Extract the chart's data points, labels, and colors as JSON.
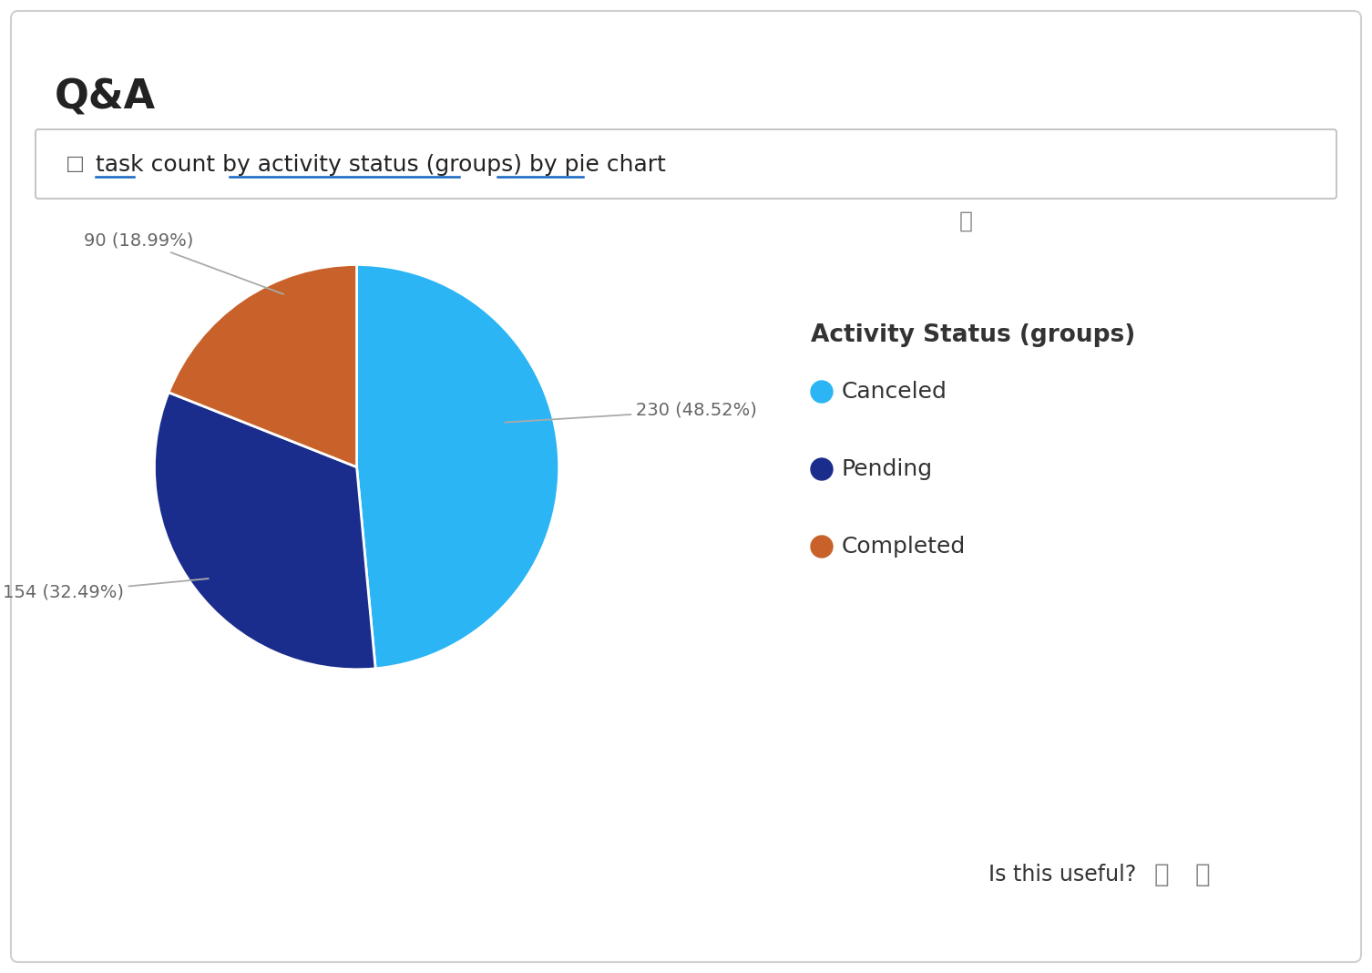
{
  "title": "Q&A",
  "query_text": "task count by activity status (groups) by pie chart",
  "slices": [
    {
      "label": "Canceled",
      "value": 230,
      "pct": 48.52,
      "color": "#2BB5F5"
    },
    {
      "label": "Pending",
      "value": 154,
      "pct": 32.49,
      "color": "#1A2D8C"
    },
    {
      "label": "Completed",
      "value": 90,
      "pct": 18.99,
      "color": "#C8622A"
    }
  ],
  "legend_title": "Activity Status (groups)",
  "footer_text": "Is this useful?",
  "background_color": "#FFFFFF",
  "border_color": "#D0D0D0",
  "title_color": "#222222",
  "label_color": "#666666",
  "query_color": "#222222",
  "underline_color": "#1565C0",
  "info_color": "#666666",
  "legend_title_color": "#333333",
  "legend_item_color": "#333333",
  "annotation_color": "#666666",
  "arrow_color": "#AAAAAA"
}
